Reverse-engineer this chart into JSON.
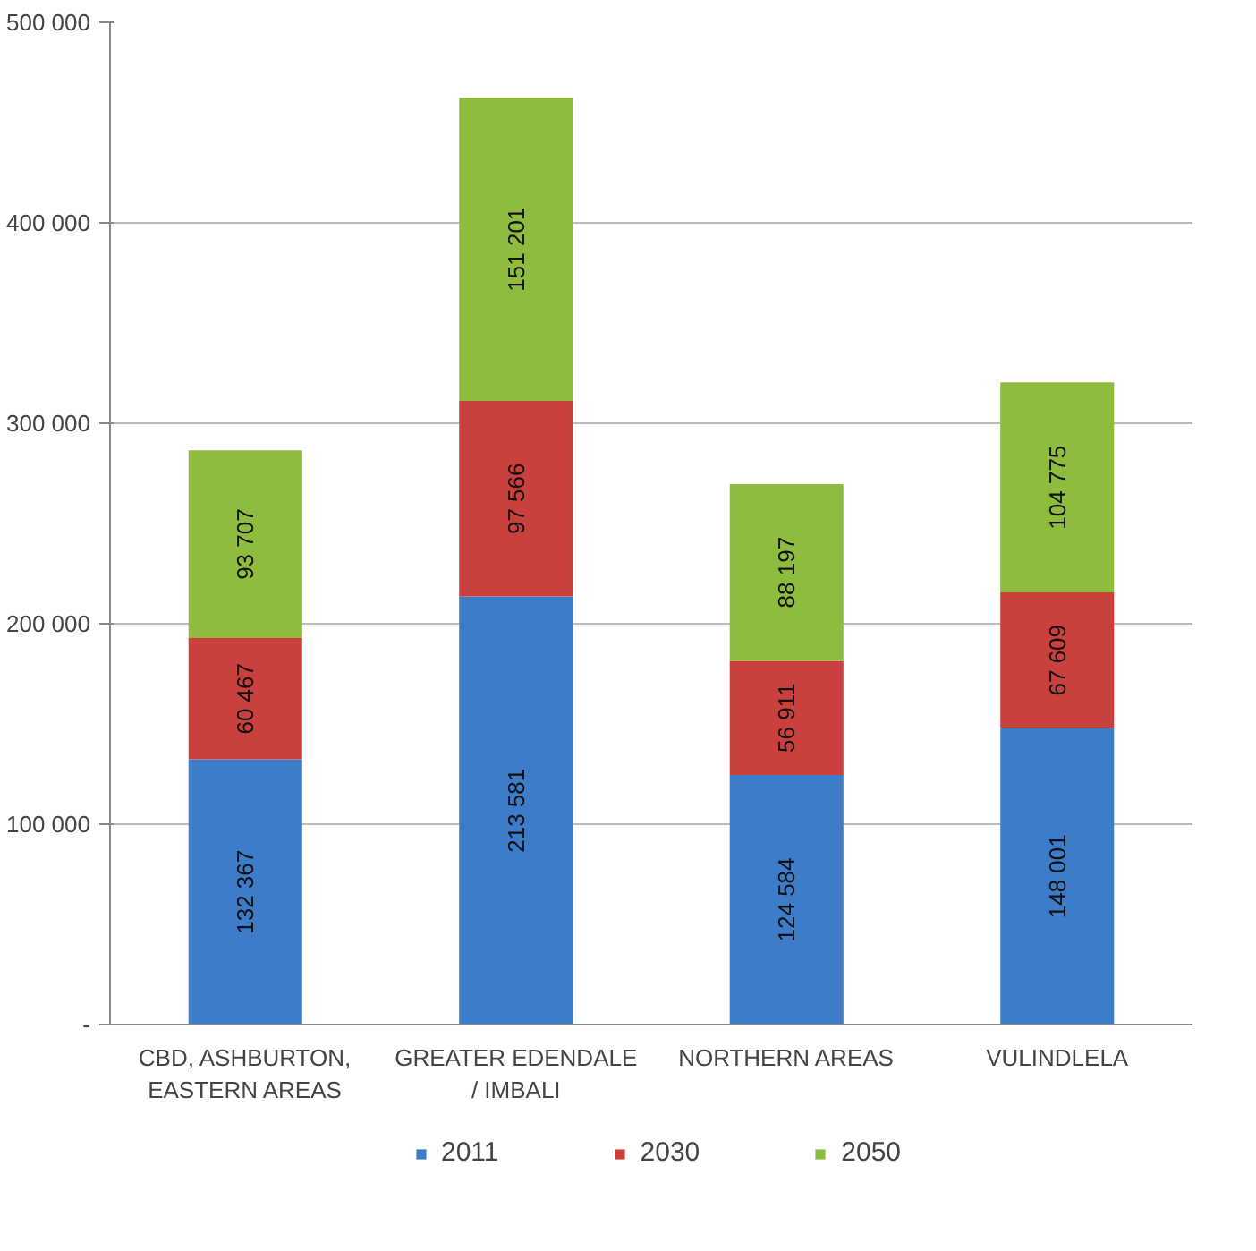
{
  "chart_data": {
    "type": "bar",
    "stacked": true,
    "categories": [
      "CBD, ASHBURTON,\nEASTERN AREAS",
      "GREATER EDENDALE\n/ IMBALI",
      "NORTHERN AREAS",
      "VULINDLELA"
    ],
    "series": [
      {
        "name": "2011",
        "color": "#3d7cc9",
        "values": [
          132367,
          213581,
          124584,
          148001
        ],
        "value_labels": [
          "132 367",
          "213 581",
          "124 584",
          "148 001"
        ]
      },
      {
        "name": "2030",
        "color": "#c9403c",
        "values": [
          60467,
          97566,
          56911,
          67609
        ],
        "value_labels": [
          "60 467",
          "97 566",
          "56 911",
          "67 609"
        ]
      },
      {
        "name": "2050",
        "color": "#8fbc3f",
        "values": [
          93707,
          151201,
          88197,
          104775
        ],
        "value_labels": [
          "93 707",
          "151 201",
          "88 197",
          "104 775"
        ]
      }
    ],
    "ylim": [
      0,
      500000
    ],
    "yticks": [
      {
        "value": 0,
        "label": "-"
      },
      {
        "value": 100000,
        "label": "100 000"
      },
      {
        "value": 200000,
        "label": "200 000"
      },
      {
        "value": 300000,
        "label": "300 000"
      },
      {
        "value": 400000,
        "label": "400 000"
      },
      {
        "value": 500000,
        "label": "500 000"
      }
    ],
    "grid": "y",
    "legend": "bottom"
  }
}
